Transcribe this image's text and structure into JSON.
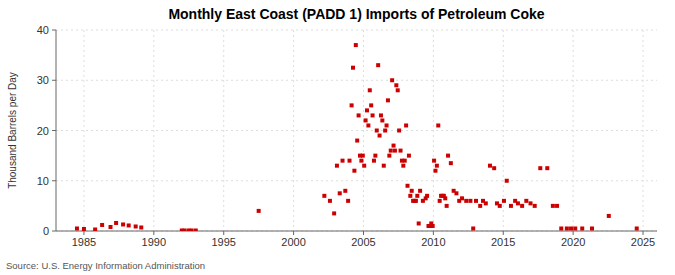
{
  "chart_data": {
    "type": "scatter",
    "title": "Monthly East Coast (PADD 1) Imports of Petroleum Coke",
    "ylabel": "Thousand Barrels per Day",
    "annotations": [
      "Source: U.S. Energy Information Administration"
    ],
    "color": "#CC0000",
    "marker": "square",
    "grid": true,
    "xlim": [
      1983,
      2026
    ],
    "ylim": [
      0,
      40
    ],
    "xticks": [
      1985,
      1990,
      1995,
      2000,
      2005,
      2010,
      2015,
      2020,
      2025
    ],
    "yticks": [
      0,
      10,
      20,
      30,
      40
    ],
    "x": [
      1984.5,
      1985.0,
      1985.8,
      1986.3,
      1986.9,
      1987.3,
      1987.8,
      1988.2,
      1988.7,
      1989.1,
      1992.0,
      1992.2,
      1992.5,
      1992.7,
      1993.0,
      1997.5,
      2002.2,
      2002.6,
      2002.9,
      2003.1,
      2003.3,
      2003.5,
      2003.7,
      2003.9,
      2004.0,
      2004.15,
      2004.25,
      2004.35,
      2004.45,
      2004.55,
      2004.65,
      2004.75,
      2004.85,
      2004.95,
      2005.05,
      2005.15,
      2005.25,
      2005.35,
      2005.45,
      2005.55,
      2005.65,
      2005.75,
      2005.85,
      2005.95,
      2006.05,
      2006.15,
      2006.25,
      2006.35,
      2006.45,
      2006.55,
      2006.65,
      2006.75,
      2006.85,
      2006.95,
      2007.05,
      2007.15,
      2007.25,
      2007.35,
      2007.45,
      2007.55,
      2007.65,
      2007.75,
      2007.85,
      2007.95,
      2008.05,
      2008.15,
      2008.25,
      2008.35,
      2008.45,
      2008.55,
      2008.65,
      2008.75,
      2008.85,
      2008.95,
      2009.05,
      2009.25,
      2009.45,
      2009.55,
      2009.65,
      2009.75,
      2009.85,
      2009.95,
      2010.05,
      2010.15,
      2010.25,
      2010.35,
      2010.45,
      2010.55,
      2010.65,
      2010.75,
      2010.85,
      2010.95,
      2011.05,
      2011.25,
      2011.45,
      2011.65,
      2011.85,
      2012.05,
      2012.35,
      2012.65,
      2012.85,
      2013.05,
      2013.35,
      2013.55,
      2013.75,
      2014.05,
      2014.35,
      2014.55,
      2014.75,
      2015.05,
      2015.25,
      2015.55,
      2015.85,
      2016.05,
      2016.35,
      2016.65,
      2016.95,
      2017.25,
      2017.65,
      2018.15,
      2018.55,
      2018.85,
      2019.15,
      2019.55,
      2019.85,
      2020.15,
      2020.65,
      2021.35,
      2022.55,
      2024.55
    ],
    "values": [
      0.5,
      0.4,
      0.3,
      1.2,
      0.8,
      1.6,
      1.3,
      1.1,
      0.9,
      0.7,
      0.1,
      0.1,
      0.1,
      0.1,
      0.1,
      4.0,
      7.0,
      6.0,
      3.5,
      13.0,
      7.5,
      14.0,
      8.0,
      6.0,
      14.0,
      25.0,
      32.5,
      12.0,
      37.0,
      18.0,
      23.0,
      15.0,
      14.0,
      15.0,
      13.0,
      22.0,
      24.0,
      21.0,
      28.0,
      25.0,
      23.0,
      14.0,
      15.0,
      20.0,
      33.0,
      19.0,
      23.0,
      22.0,
      13.0,
      20.0,
      21.0,
      26.0,
      15.0,
      16.0,
      30.0,
      17.0,
      16.0,
      29.0,
      28.0,
      20.0,
      16.0,
      14.0,
      13.0,
      14.0,
      21.0,
      9.0,
      15.0,
      7.0,
      8.0,
      6.0,
      6.0,
      6.0,
      7.0,
      1.5,
      8.0,
      6.0,
      6.5,
      7.0,
      1.0,
      1.0,
      1.5,
      1.0,
      14.0,
      12.0,
      13.0,
      21.0,
      6.0,
      7.0,
      7.0,
      7.0,
      6.5,
      5.0,
      15.0,
      13.5,
      8.0,
      7.5,
      6.0,
      6.5,
      6.0,
      6.0,
      0.5,
      6.0,
      5.0,
      6.0,
      5.5,
      13.0,
      12.5,
      5.5,
      5.0,
      6.0,
      10.0,
      5.0,
      6.0,
      5.5,
      5.0,
      6.0,
      5.5,
      5.0,
      12.5,
      12.5,
      5.0,
      5.0,
      0.5,
      0.5,
      0.5,
      0.5,
      0.5,
      0.5,
      3.0,
      0.5
    ]
  }
}
